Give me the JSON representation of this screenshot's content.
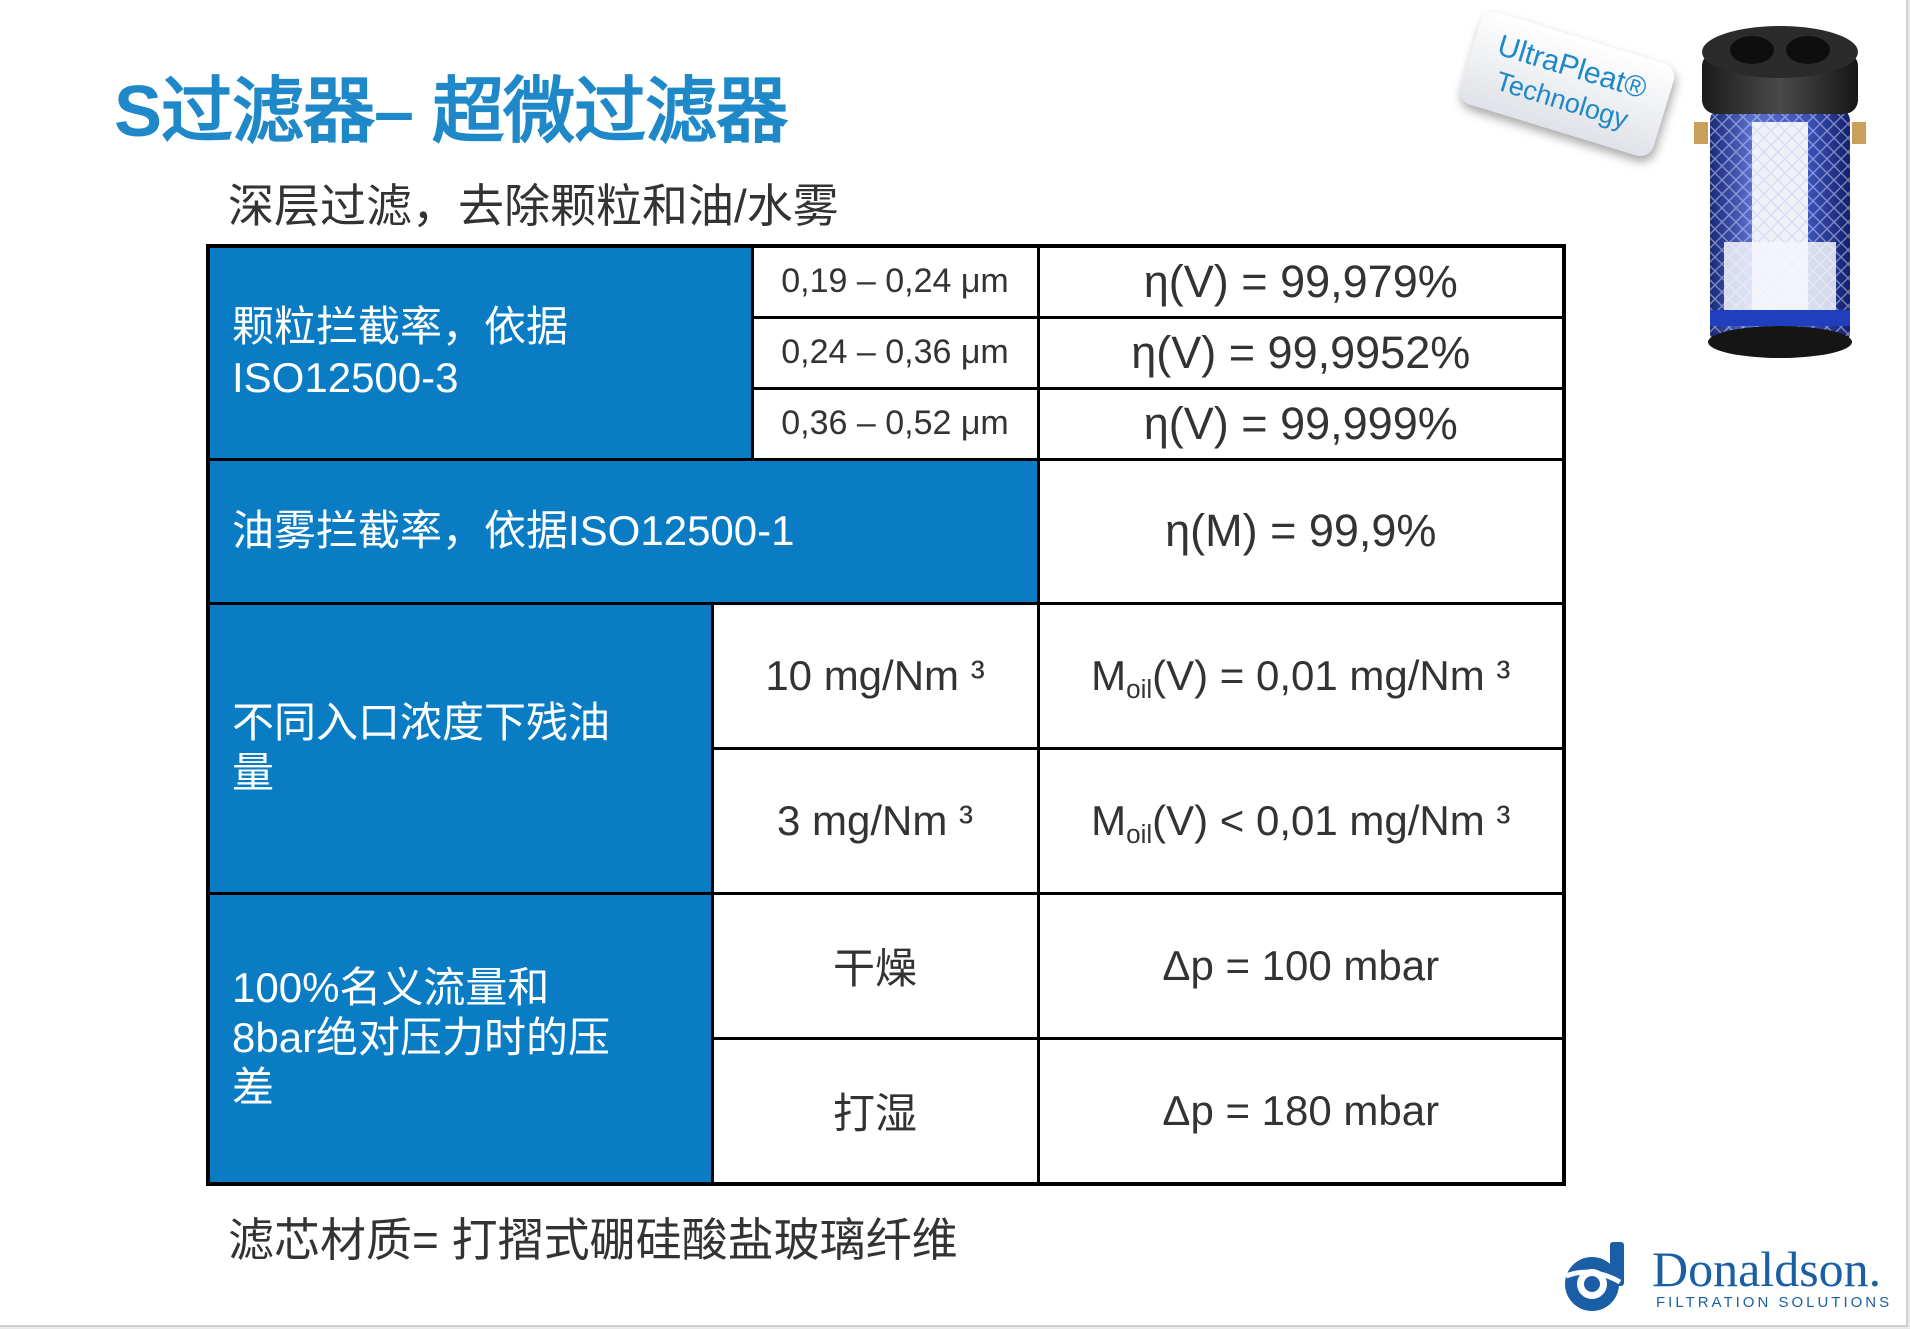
{
  "title": "S过滤器– 超微过滤器",
  "subtitle": "深层过滤，去除颗粒和油/水雾",
  "badge": {
    "line1": "UltraPleat®",
    "line2": "Technology"
  },
  "table": {
    "particle": {
      "label_line1": "颗粒拦截率，依据",
      "label_line2": "ISO12500-3",
      "rows": [
        {
          "range": "0,19 – 0,24 μm",
          "value": "η(V) = 99,979%"
        },
        {
          "range": "0,24 – 0,36 μm",
          "value": "η(V) = 99,9952%"
        },
        {
          "range": "0,36 – 0,52 μm",
          "value": "η(V) = 99,999%"
        }
      ]
    },
    "oil_mist": {
      "label": "油雾拦截率，依据ISO12500-1",
      "value": "η(M) = 99,9%"
    },
    "residual_oil": {
      "label_line1": "不同入口浓度下残油",
      "label_line2": "量",
      "rows": [
        {
          "inlet": "10 mg/Nm ³",
          "prefix": "M",
          "sub": "oil",
          "rest": "(V) = 0,01 mg/Nm ³"
        },
        {
          "inlet": "3 mg/Nm ³",
          "prefix": "M",
          "sub": "oil",
          "rest": "(V) < 0,01 mg/Nm ³"
        }
      ]
    },
    "pressure": {
      "label_line1": "100%名义流量和",
      "label_line2": "8bar绝对压力时的压",
      "label_line3": "差",
      "rows": [
        {
          "state": "干燥",
          "value": "Δp = 100 mbar"
        },
        {
          "state": "打湿",
          "value": "Δp = 180 mbar"
        }
      ]
    }
  },
  "footer_note": "滤芯材质= 打摺式硼硅酸盐玻璃纤维",
  "logo": {
    "name": "Donaldson.",
    "tagline": "FILTRATION SOLUTIONS"
  },
  "colors": {
    "accent": "#1e88c8",
    "cell_blue": "#0a7cc4",
    "logo_blue": "#1a5fa6"
  }
}
